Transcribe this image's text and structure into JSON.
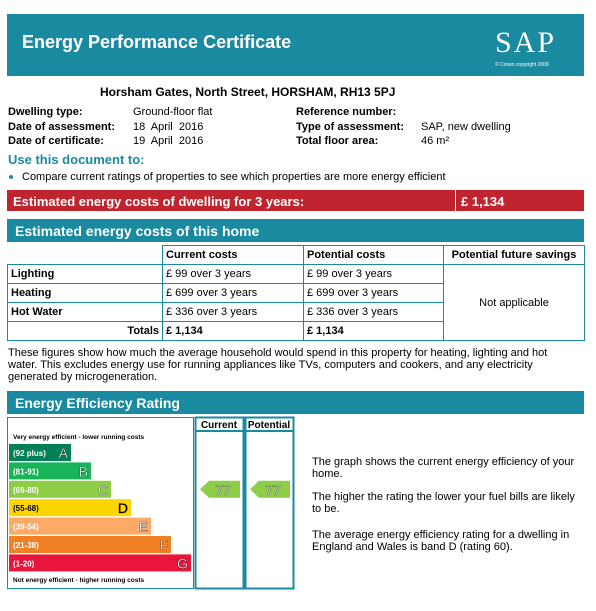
{
  "header": {
    "title": "Energy Performance Certificate",
    "logo": "SAP",
    "copyright": "© Crown copyright 2009"
  },
  "address": "Horsham Gates, North Street, HORSHAM, RH13 5PJ",
  "details": {
    "left": [
      {
        "label": "Dwelling type:",
        "value": "Ground-floor flat"
      },
      {
        "label": "Date of assessment:",
        "value": "18  April  2016"
      },
      {
        "label": "Date of certificate:",
        "value": "19  April  2016"
      }
    ],
    "right": [
      {
        "label": "Reference number:"
      },
      {
        "label": "Type of assessment:",
        "value": "SAP, new dwelling"
      },
      {
        "label": "Total floor area:",
        "value": "46 m²"
      }
    ]
  },
  "use_document": {
    "heading": "Use this document to:",
    "bullets": [
      "Compare current ratings of properties to see which properties are more energy efficient"
    ]
  },
  "estimated_total": {
    "label": "Estimated energy costs of dwelling for 3 years:",
    "value": "£ 1,134"
  },
  "costs_table": {
    "title": "Estimated energy costs of this home",
    "headers": [
      "Current costs",
      "Potential costs",
      "Potential future savings"
    ],
    "rows": [
      [
        "Lighting",
        "£ 99 over 3 years",
        "£ 99 over 3 years"
      ],
      [
        "Heating",
        "£ 699 over 3 years",
        "£ 699 over 3 years"
      ],
      [
        "Hot Water",
        "£ 336 over 3 years",
        "£ 336 over 3 years"
      ]
    ],
    "totals": [
      "Totals",
      "£ 1,134",
      "£ 1,134"
    ],
    "savings": "Not applicable"
  },
  "note": "These figures show how much the average household would spend in this property for heating, lighting and hot water. This excludes energy use for running appliances like TVs, computers and cookers, and any electricity generated by microgeneration.",
  "rating": {
    "title": "Energy Efficiency Rating",
    "columns": [
      "Current",
      "Potential"
    ],
    "top_label": "Very energy efficient - lower running costs",
    "bottom_label": "Not energy efficient - higher running costs",
    "bands": [
      {
        "range": "(92 plus)",
        "letter": "A",
        "color": "#008054"
      },
      {
        "range": "(81-91)",
        "letter": "B",
        "color": "#19b459"
      },
      {
        "range": "(69-80)",
        "letter": "C",
        "color": "#8dce46"
      },
      {
        "range": "(55-68)",
        "letter": "D",
        "color": "#ffd500"
      },
      {
        "range": "(39-54)",
        "letter": "E",
        "color": "#fcaa65"
      },
      {
        "range": "(21-38)",
        "letter": "F",
        "color": "#ef8023"
      },
      {
        "range": "(1-20)",
        "letter": "G",
        "color": "#e9153b"
      }
    ],
    "current": 77,
    "potential": 77,
    "paragraphs": [
      "The graph shows the current energy efficiency of your home.",
      "The higher the rating the lower your fuel bills are likely to be.",
      "The average energy efficiency rating for a dwelling in England and Wales is band D (rating 60)."
    ]
  }
}
